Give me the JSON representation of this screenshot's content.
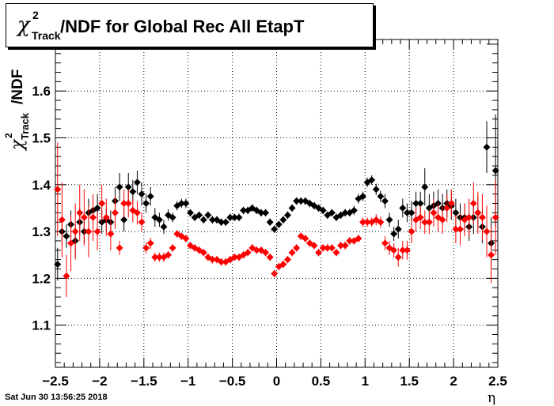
{
  "chart_data": {
    "type": "scatter",
    "title": {
      "prefix": "χ",
      "sup": "2",
      "sub": "Track",
      "text": "/NDF for Global Rec All EtapT"
    },
    "xlabel": "η",
    "ylabel": {
      "prefix": "χ",
      "sup": "2",
      "sub": "Track",
      "text": "/NDF"
    },
    "xlim": [
      -2.5,
      2.5
    ],
    "ylim": [
      1.01,
      1.71
    ],
    "x_ticks": [
      "−2.5",
      "−2",
      "−1.5",
      "−1",
      "−0.5",
      "0",
      "0.5",
      "1",
      "1.5",
      "2",
      "2.5"
    ],
    "x_tick_values": [
      -2.5,
      -2,
      -1.5,
      -1,
      -0.5,
      0,
      0.5,
      1,
      1.5,
      2,
      2.5
    ],
    "y_ticks": [
      "1.1",
      "1.2",
      "1.3",
      "1.4",
      "1.5",
      "1.6"
    ],
    "y_tick_values": [
      1.1,
      1.2,
      1.3,
      1.4,
      1.5,
      1.6
    ],
    "grid": true,
    "timestamp": "Sat Jun 30 13:56:25 2018",
    "series": [
      {
        "color": "#000000",
        "points": [
          [
            -2.475,
            1.23,
            0.035
          ],
          [
            -2.425,
            1.3,
            0.03
          ],
          [
            -2.375,
            1.29,
            0.025
          ],
          [
            -2.325,
            1.315,
            0.03
          ],
          [
            -2.275,
            1.28,
            0.035
          ],
          [
            -2.225,
            1.32,
            0.03
          ],
          [
            -2.175,
            1.3,
            0.025
          ],
          [
            -2.125,
            1.34,
            0.03
          ],
          [
            -2.075,
            1.345,
            0.03
          ],
          [
            -2.025,
            1.35,
            0.03
          ],
          [
            -1.975,
            1.32,
            0.025
          ],
          [
            -1.925,
            1.325,
            0.025
          ],
          [
            -1.875,
            1.32,
            0.025
          ],
          [
            -1.825,
            1.365,
            0.03
          ],
          [
            -1.775,
            1.395,
            0.03
          ],
          [
            -1.725,
            1.325,
            0.025
          ],
          [
            -1.675,
            1.395,
            0.03
          ],
          [
            -1.625,
            1.385,
            0.025
          ],
          [
            -1.575,
            1.405,
            0.025
          ],
          [
            -1.525,
            1.38,
            0.025
          ],
          [
            -1.475,
            1.36,
            0.02
          ],
          [
            -1.425,
            1.375,
            0.02
          ],
          [
            -1.375,
            1.33,
            0.02
          ],
          [
            -1.325,
            1.325,
            0.015
          ],
          [
            -1.275,
            1.31,
            0.015
          ],
          [
            -1.225,
            1.335,
            0.012
          ],
          [
            -1.175,
            1.33,
            0.01
          ],
          [
            -1.125,
            1.355,
            0.01
          ],
          [
            -1.075,
            1.36,
            0.01
          ],
          [
            -1.025,
            1.36,
            0.01
          ],
          [
            -0.975,
            1.34,
            0.008
          ],
          [
            -0.925,
            1.33,
            0.008
          ],
          [
            -0.875,
            1.335,
            0.008
          ],
          [
            -0.825,
            1.325,
            0.008
          ],
          [
            -0.775,
            1.335,
            0.008
          ],
          [
            -0.725,
            1.325,
            0.008
          ],
          [
            -0.675,
            1.325,
            0.008
          ],
          [
            -0.625,
            1.32,
            0.008
          ],
          [
            -0.575,
            1.32,
            0.008
          ],
          [
            -0.525,
            1.33,
            0.008
          ],
          [
            -0.475,
            1.33,
            0.008
          ],
          [
            -0.425,
            1.33,
            0.008
          ],
          [
            -0.375,
            1.345,
            0.008
          ],
          [
            -0.325,
            1.345,
            0.008
          ],
          [
            -0.275,
            1.35,
            0.008
          ],
          [
            -0.225,
            1.345,
            0.008
          ],
          [
            -0.175,
            1.34,
            0.008
          ],
          [
            -0.125,
            1.34,
            0.008
          ],
          [
            -0.075,
            1.32,
            0.008
          ],
          [
            -0.025,
            1.305,
            0.008
          ],
          [
            0.025,
            1.315,
            0.008
          ],
          [
            0.075,
            1.325,
            0.008
          ],
          [
            0.125,
            1.335,
            0.008
          ],
          [
            0.175,
            1.35,
            0.008
          ],
          [
            0.225,
            1.365,
            0.008
          ],
          [
            0.275,
            1.365,
            0.008
          ],
          [
            0.325,
            1.365,
            0.008
          ],
          [
            0.375,
            1.36,
            0.008
          ],
          [
            0.425,
            1.355,
            0.008
          ],
          [
            0.475,
            1.35,
            0.008
          ],
          [
            0.525,
            1.345,
            0.008
          ],
          [
            0.575,
            1.335,
            0.008
          ],
          [
            0.625,
            1.34,
            0.008
          ],
          [
            0.675,
            1.33,
            0.008
          ],
          [
            0.725,
            1.335,
            0.008
          ],
          [
            0.775,
            1.34,
            0.008
          ],
          [
            0.825,
            1.34,
            0.008
          ],
          [
            0.875,
            1.345,
            0.01
          ],
          [
            0.925,
            1.37,
            0.01
          ],
          [
            0.975,
            1.375,
            0.01
          ],
          [
            1.025,
            1.405,
            0.01
          ],
          [
            1.075,
            1.41,
            0.01
          ],
          [
            1.125,
            1.39,
            0.012
          ],
          [
            1.175,
            1.375,
            0.012
          ],
          [
            1.225,
            1.365,
            0.015
          ],
          [
            1.275,
            1.325,
            0.015
          ],
          [
            1.325,
            1.295,
            0.015
          ],
          [
            1.375,
            1.305,
            0.02
          ],
          [
            1.425,
            1.35,
            0.02
          ],
          [
            1.475,
            1.34,
            0.02
          ],
          [
            1.525,
            1.34,
            0.025
          ],
          [
            1.575,
            1.36,
            0.025
          ],
          [
            1.625,
            1.36,
            0.025
          ],
          [
            1.675,
            1.395,
            0.04
          ],
          [
            1.725,
            1.35,
            0.03
          ],
          [
            1.775,
            1.355,
            0.03
          ],
          [
            1.825,
            1.36,
            0.03
          ],
          [
            1.875,
            1.35,
            0.03
          ],
          [
            1.925,
            1.36,
            0.03
          ],
          [
            1.975,
            1.355,
            0.03
          ],
          [
            2.025,
            1.34,
            0.03
          ],
          [
            2.075,
            1.33,
            0.03
          ],
          [
            2.125,
            1.33,
            0.03
          ],
          [
            2.175,
            1.31,
            0.03
          ],
          [
            2.225,
            1.33,
            0.035
          ],
          [
            2.275,
            1.34,
            0.035
          ],
          [
            2.325,
            1.31,
            0.035
          ],
          [
            2.375,
            1.48,
            0.055
          ],
          [
            2.425,
            1.275,
            0.055
          ],
          [
            2.475,
            1.43,
            0.12
          ]
        ]
      },
      {
        "color": "#ff0000",
        "points": [
          [
            -2.475,
            1.39,
            0.1
          ],
          [
            -2.425,
            1.325,
            0.08
          ],
          [
            -2.375,
            1.205,
            0.045
          ],
          [
            -2.325,
            1.275,
            0.06
          ],
          [
            -2.275,
            1.3,
            0.06
          ],
          [
            -2.225,
            1.34,
            0.06
          ],
          [
            -2.175,
            1.33,
            0.06
          ],
          [
            -2.125,
            1.3,
            0.055
          ],
          [
            -2.075,
            1.33,
            0.05
          ],
          [
            -2.025,
            1.3,
            0.04
          ],
          [
            -1.975,
            1.36,
            0.04
          ],
          [
            -1.925,
            1.33,
            0.04
          ],
          [
            -1.875,
            1.295,
            0.035
          ],
          [
            -1.825,
            1.34,
            0.035
          ],
          [
            -1.775,
            1.265,
            0.015
          ],
          [
            -1.725,
            1.36,
            0.03
          ],
          [
            -1.675,
            1.36,
            0.03
          ],
          [
            -1.625,
            1.345,
            0.025
          ],
          [
            -1.575,
            1.34,
            0.025
          ],
          [
            -1.525,
            1.32,
            0.02
          ],
          [
            -1.475,
            1.265,
            0.012
          ],
          [
            -1.425,
            1.275,
            0.012
          ],
          [
            -1.375,
            1.245,
            0.01
          ],
          [
            -1.325,
            1.245,
            0.01
          ],
          [
            -1.275,
            1.245,
            0.01
          ],
          [
            -1.225,
            1.25,
            0.008
          ],
          [
            -1.175,
            1.265,
            0.008
          ],
          [
            -1.125,
            1.295,
            0.008
          ],
          [
            -1.075,
            1.29,
            0.008
          ],
          [
            -1.025,
            1.285,
            0.008
          ],
          [
            -0.975,
            1.27,
            0.008
          ],
          [
            -0.925,
            1.265,
            0.008
          ],
          [
            -0.875,
            1.26,
            0.008
          ],
          [
            -0.825,
            1.255,
            0.008
          ],
          [
            -0.775,
            1.245,
            0.008
          ],
          [
            -0.725,
            1.24,
            0.008
          ],
          [
            -0.675,
            1.24,
            0.008
          ],
          [
            -0.625,
            1.235,
            0.008
          ],
          [
            -0.575,
            1.235,
            0.008
          ],
          [
            -0.525,
            1.24,
            0.008
          ],
          [
            -0.475,
            1.245,
            0.008
          ],
          [
            -0.425,
            1.245,
            0.008
          ],
          [
            -0.375,
            1.25,
            0.008
          ],
          [
            -0.325,
            1.255,
            0.008
          ],
          [
            -0.275,
            1.265,
            0.008
          ],
          [
            -0.225,
            1.26,
            0.008
          ],
          [
            -0.175,
            1.26,
            0.008
          ],
          [
            -0.125,
            1.255,
            0.008
          ],
          [
            -0.075,
            1.245,
            0.008
          ],
          [
            -0.025,
            1.21,
            0.008
          ],
          [
            0.025,
            1.225,
            0.008
          ],
          [
            0.075,
            1.23,
            0.008
          ],
          [
            0.125,
            1.24,
            0.008
          ],
          [
            0.175,
            1.255,
            0.008
          ],
          [
            0.225,
            1.265,
            0.008
          ],
          [
            0.275,
            1.29,
            0.008
          ],
          [
            0.325,
            1.285,
            0.008
          ],
          [
            0.375,
            1.275,
            0.008
          ],
          [
            0.425,
            1.27,
            0.008
          ],
          [
            0.475,
            1.255,
            0.008
          ],
          [
            0.525,
            1.265,
            0.008
          ],
          [
            0.575,
            1.265,
            0.008
          ],
          [
            0.625,
            1.265,
            0.008
          ],
          [
            0.675,
            1.255,
            0.008
          ],
          [
            0.725,
            1.27,
            0.008
          ],
          [
            0.775,
            1.27,
            0.008
          ],
          [
            0.825,
            1.28,
            0.008
          ],
          [
            0.875,
            1.28,
            0.008
          ],
          [
            0.925,
            1.285,
            0.008
          ],
          [
            0.975,
            1.32,
            0.01
          ],
          [
            1.025,
            1.32,
            0.01
          ],
          [
            1.075,
            1.32,
            0.01
          ],
          [
            1.125,
            1.325,
            0.012
          ],
          [
            1.175,
            1.32,
            0.012
          ],
          [
            1.225,
            1.275,
            0.015
          ],
          [
            1.275,
            1.265,
            0.015
          ],
          [
            1.325,
            1.26,
            0.015
          ],
          [
            1.375,
            1.245,
            0.02
          ],
          [
            1.425,
            1.26,
            0.02
          ],
          [
            1.475,
            1.26,
            0.02
          ],
          [
            1.525,
            1.3,
            0.025
          ],
          [
            1.575,
            1.325,
            0.025
          ],
          [
            1.625,
            1.33,
            0.025
          ],
          [
            1.675,
            1.32,
            0.025
          ],
          [
            1.725,
            1.32,
            0.025
          ],
          [
            1.775,
            1.34,
            0.03
          ],
          [
            1.825,
            1.33,
            0.03
          ],
          [
            1.875,
            1.325,
            0.03
          ],
          [
            1.925,
            1.35,
            0.03
          ],
          [
            1.975,
            1.36,
            0.03
          ],
          [
            2.025,
            1.305,
            0.03
          ],
          [
            2.075,
            1.305,
            0.035
          ],
          [
            2.125,
            1.325,
            0.035
          ],
          [
            2.175,
            1.33,
            0.04
          ],
          [
            2.225,
            1.36,
            0.045
          ],
          [
            2.275,
            1.34,
            0.045
          ],
          [
            2.325,
            1.33,
            0.05
          ],
          [
            2.375,
            1.3,
            0.055
          ],
          [
            2.425,
            1.25,
            0.06
          ],
          [
            2.475,
            1.33,
            0.08
          ]
        ]
      }
    ]
  }
}
